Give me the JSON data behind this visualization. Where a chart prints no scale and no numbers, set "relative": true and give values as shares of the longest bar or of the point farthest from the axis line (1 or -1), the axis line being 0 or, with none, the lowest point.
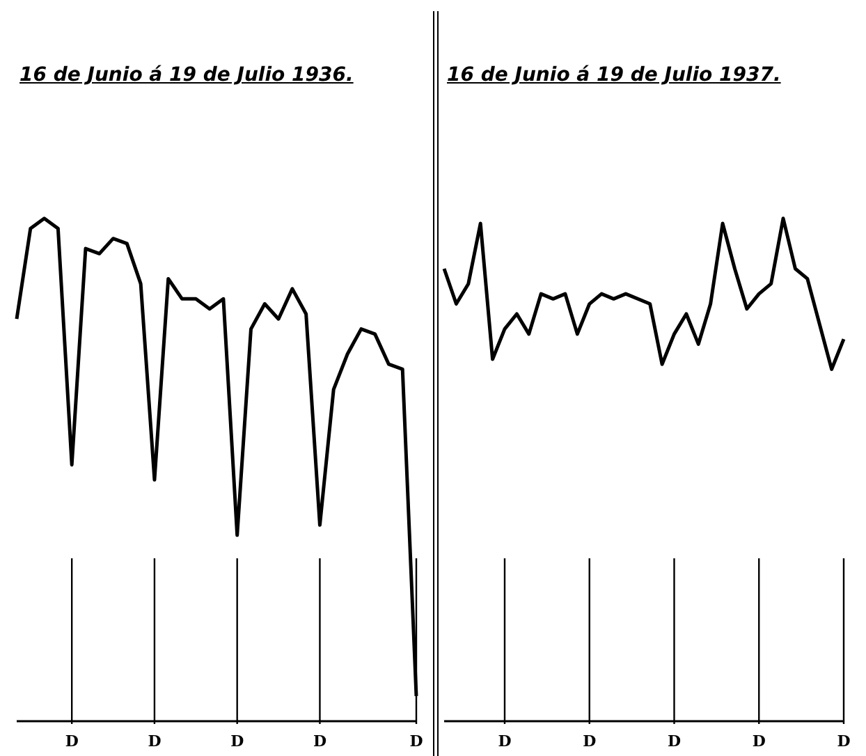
{
  "chart_data": [
    {
      "type": "line",
      "title": "16 de Junio á 19 de Julio 1936.",
      "relative": true,
      "color": "#000000",
      "categories": [
        null,
        null,
        null,
        null,
        "D",
        null,
        null,
        null,
        null,
        null,
        "D",
        null,
        null,
        null,
        null,
        null,
        "D",
        null,
        null,
        null,
        null,
        null,
        "D",
        null,
        null,
        null,
        null,
        null,
        null,
        "D"
      ],
      "values": [
        0.8,
        0.98,
        1.0,
        0.98,
        0.51,
        0.94,
        0.93,
        0.96,
        0.95,
        0.87,
        0.48,
        0.88,
        0.84,
        0.84,
        0.82,
        0.84,
        0.37,
        0.78,
        0.83,
        0.8,
        0.86,
        0.81,
        0.39,
        0.66,
        0.73,
        0.78,
        0.77,
        0.71,
        0.7,
        0.05
      ]
    },
    {
      "type": "line",
      "title": "16 de Junio á 19 de Julio 1937.",
      "relative": true,
      "color": "#000000",
      "categories": [
        null,
        null,
        null,
        null,
        null,
        "D",
        null,
        null,
        null,
        null,
        null,
        null,
        "D",
        null,
        null,
        null,
        null,
        null,
        null,
        "D",
        null,
        null,
        null,
        null,
        null,
        null,
        "D",
        null,
        null,
        null,
        null,
        null,
        null,
        "D"
      ],
      "values": [
        0.9,
        0.83,
        0.87,
        0.99,
        0.72,
        0.78,
        0.81,
        0.77,
        0.85,
        0.84,
        0.85,
        0.77,
        0.83,
        0.85,
        0.84,
        0.85,
        null,
        0.83,
        0.71,
        0.77,
        0.81,
        0.75,
        0.83,
        0.99,
        0.9,
        0.82,
        0.85,
        0.87,
        1.0,
        0.9,
        0.88,
        null,
        0.7,
        0.76
      ]
    }
  ]
}
